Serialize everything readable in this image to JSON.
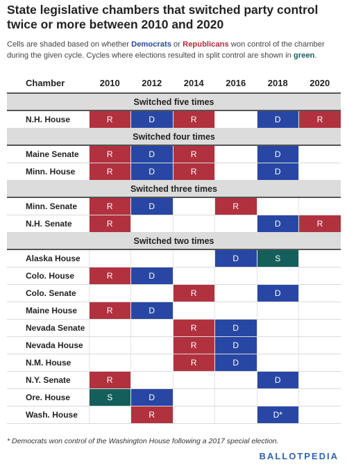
{
  "title": "State legislative chambers that switched party control twice or more between 2010 and 2020",
  "subtitle": {
    "part1": "Cells are shaded based on whether ",
    "dem": "Democrats",
    "part2": " or ",
    "rep": "Republicans",
    "part3": " won control of the chamber during the given cycle. Cycles where elections resulted in split control are shown in ",
    "split": "green",
    "part4": "."
  },
  "colors": {
    "R": "#b2313f",
    "D": "#2847a4",
    "S": "#145f5c",
    "group_bg": "#dcdcdc",
    "brand": "#2f63b0"
  },
  "chart_data": {
    "type": "table",
    "columns": [
      "Chamber",
      "2010",
      "2012",
      "2014",
      "2016",
      "2018",
      "2020"
    ],
    "groups": [
      {
        "label": "Switched five times",
        "rows": [
          {
            "chamber": "N.H. House",
            "cells": [
              "R",
              "D",
              "R",
              "",
              "D",
              "R"
            ]
          }
        ]
      },
      {
        "label": "Switched four times",
        "rows": [
          {
            "chamber": "Maine Senate",
            "cells": [
              "R",
              "D",
              "R",
              "",
              "D",
              ""
            ]
          },
          {
            "chamber": "Minn. House",
            "cells": [
              "R",
              "D",
              "R",
              "",
              "D",
              ""
            ]
          }
        ]
      },
      {
        "label": "Switched three times",
        "rows": [
          {
            "chamber": "Minn. Senate",
            "cells": [
              "R",
              "D",
              "",
              "R",
              "",
              ""
            ]
          },
          {
            "chamber": "N.H. Senate",
            "cells": [
              "R",
              "",
              "",
              "",
              "D",
              "R"
            ]
          }
        ]
      },
      {
        "label": "Switched two times",
        "rows": [
          {
            "chamber": "Alaska House",
            "cells": [
              "",
              "",
              "",
              "D",
              "S",
              ""
            ]
          },
          {
            "chamber": "Colo. House",
            "cells": [
              "R",
              "D",
              "",
              "",
              "",
              ""
            ]
          },
          {
            "chamber": "Colo. Senate",
            "cells": [
              "",
              "",
              "R",
              "",
              "D",
              ""
            ]
          },
          {
            "chamber": "Maine House",
            "cells": [
              "R",
              "D",
              "",
              "",
              "",
              ""
            ]
          },
          {
            "chamber": "Nevada Senate",
            "cells": [
              "",
              "",
              "R",
              "D",
              "",
              ""
            ]
          },
          {
            "chamber": "Nevada House",
            "cells": [
              "",
              "",
              "R",
              "D",
              "",
              ""
            ]
          },
          {
            "chamber": "N.M. House",
            "cells": [
              "",
              "",
              "R",
              "D",
              "",
              ""
            ]
          },
          {
            "chamber": "N.Y. Senate",
            "cells": [
              "R",
              "",
              "",
              "",
              "D",
              ""
            ]
          },
          {
            "chamber": "Ore. House",
            "cells": [
              "S",
              "D",
              "",
              "",
              "",
              ""
            ]
          },
          {
            "chamber": "Wash. House",
            "cells": [
              "",
              "R",
              "",
              "",
              "D*",
              ""
            ]
          }
        ]
      }
    ]
  },
  "footnote": "* Democrats won control of the Washington House following a 2017 special election.",
  "brand": "BALLOTPEDIA"
}
